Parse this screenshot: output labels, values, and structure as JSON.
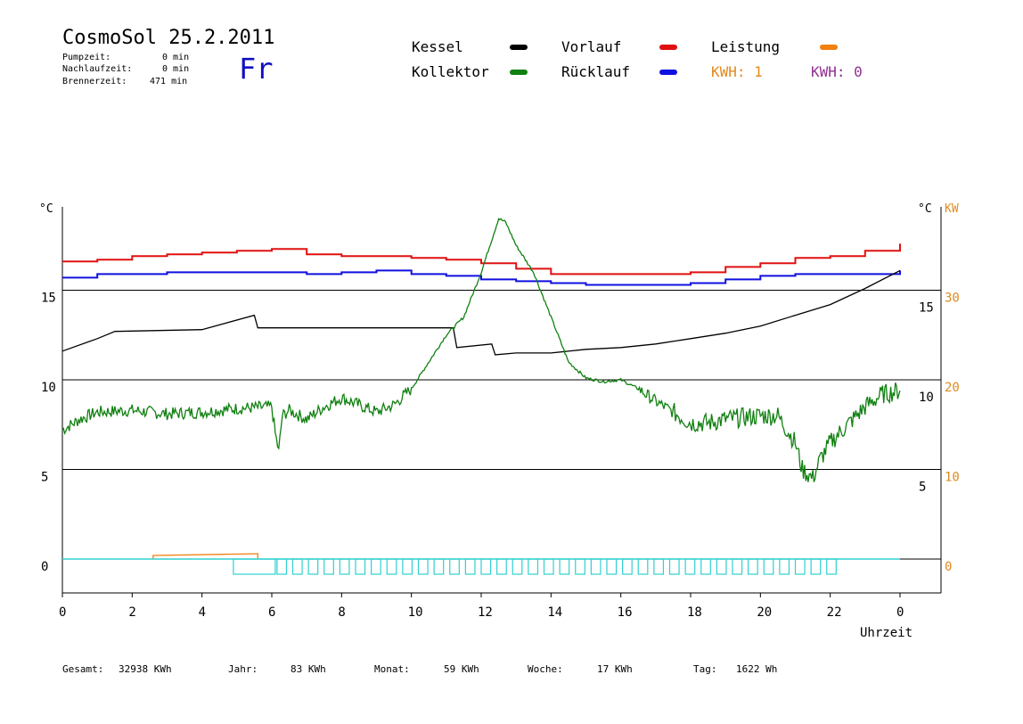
{
  "header": {
    "title": "CosmoSol 25.2.2011",
    "weekday": "Fr",
    "stats": [
      {
        "label": "Pumpzeit:",
        "value": "0 min"
      },
      {
        "label": "Nachlaufzeit:",
        "value": "0 min"
      },
      {
        "label": "Brennerzeit:",
        "value": "471 min"
      }
    ]
  },
  "legend": {
    "items": [
      {
        "label": "Kessel",
        "color": "#000000"
      },
      {
        "label": "Kollektor",
        "color": "#108010"
      },
      {
        "label": "Vorlauf",
        "color": "#e01010"
      },
      {
        "label": "Rücklauf",
        "color": "#1010e0"
      },
      {
        "label": "Leistung",
        "color": "#f08010"
      }
    ],
    "kwh_a": "KWH: 1",
    "kwh_a_color": "#e08a20",
    "kwh_b": "KWH: 0",
    "kwh_b_color": "#903090"
  },
  "footer": {
    "items": [
      {
        "label": "Gesamt:",
        "value": "32938 KWh"
      },
      {
        "label": "Jahr:",
        "value": "83 KWh"
      },
      {
        "label": "Monat:",
        "value": "59 KWh"
      },
      {
        "label": "Woche:",
        "value": "17 KWh"
      },
      {
        "label": "Tag:",
        "value": "1622 Wh"
      }
    ]
  },
  "chart_data": {
    "type": "line",
    "title": "CosmoSol 25.2.2011",
    "xlabel": "Uhrzeit",
    "ylabel_left": "°C",
    "ylabel_right": "°C",
    "ylabel_power": "KW",
    "xlim": [
      0,
      24
    ],
    "ylim": [
      -1.5,
      20
    ],
    "x_ticks": [
      "0",
      "2",
      "4",
      "6",
      "8",
      "10",
      "12",
      "14",
      "16",
      "18",
      "20",
      "22",
      "0"
    ],
    "y_ticks_left": [
      "15",
      "10",
      "5",
      "0"
    ],
    "y_ticks_right": [
      "15",
      "10",
      "5"
    ],
    "y_ticks_power": [
      "30",
      "20",
      "10",
      "0"
    ],
    "grid_y": [
      0,
      5,
      10,
      15
    ],
    "series": [
      {
        "name": "Vorlauf",
        "color": "#e01010",
        "x": [
          0,
          1,
          2,
          3,
          4,
          5,
          6,
          7,
          8,
          9,
          10,
          11,
          12,
          13,
          14,
          15,
          16,
          17,
          18,
          19,
          20,
          21,
          22,
          23,
          24
        ],
        "y": [
          16.6,
          16.7,
          16.9,
          17.0,
          17.1,
          17.2,
          17.3,
          17.0,
          16.9,
          16.9,
          16.8,
          16.7,
          16.5,
          16.2,
          15.9,
          15.9,
          15.9,
          15.9,
          16.0,
          16.3,
          16.5,
          16.8,
          16.9,
          17.2,
          17.6
        ]
      },
      {
        "name": "Rücklauf",
        "color": "#1010e0",
        "x": [
          0,
          1,
          2,
          3,
          4,
          5,
          6,
          7,
          8,
          9,
          10,
          11,
          12,
          13,
          14,
          15,
          16,
          17,
          18,
          19,
          20,
          21,
          22,
          23,
          24
        ],
        "y": [
          15.7,
          15.9,
          15.9,
          16.0,
          16.0,
          16.0,
          16.0,
          15.9,
          16.0,
          16.1,
          15.9,
          15.8,
          15.6,
          15.5,
          15.4,
          15.3,
          15.3,
          15.3,
          15.4,
          15.6,
          15.8,
          15.9,
          15.9,
          15.9,
          16.1
        ]
      },
      {
        "name": "Kessel",
        "color": "#000000",
        "x": [
          0,
          1,
          1.5,
          4,
          5.5,
          5.6,
          11.2,
          11.3,
          12.3,
          12.4,
          13,
          14,
          15,
          16,
          17,
          18,
          19,
          20,
          21,
          22,
          23,
          24
        ],
        "y": [
          11.6,
          12.3,
          12.7,
          12.8,
          13.6,
          12.9,
          12.9,
          11.8,
          12.0,
          11.4,
          11.5,
          11.5,
          11.7,
          11.8,
          12.0,
          12.3,
          12.6,
          13.0,
          13.6,
          14.2,
          15.1,
          16.1
        ]
      },
      {
        "name": "Kollektor",
        "color": "#108010",
        "x": [
          0,
          0.5,
          1,
          2,
          3,
          4,
          5,
          6,
          6.1,
          6.2,
          6.3,
          6.5,
          7,
          7.5,
          8,
          9,
          9.5,
          10,
          10.5,
          11,
          11.5,
          12,
          12.5,
          12.7,
          13,
          13.5,
          14,
          14.5,
          15,
          15.5,
          16,
          16.5,
          17,
          17.5,
          18,
          18.5,
          19,
          20,
          20.5,
          21,
          21.2,
          21.5,
          21.7,
          22,
          22.5,
          23,
          23.5,
          24
        ],
        "y": [
          7.2,
          7.8,
          8.2,
          8.3,
          8.1,
          8.2,
          8.4,
          8.5,
          7.0,
          6.0,
          8.0,
          8.3,
          7.8,
          8.5,
          9.0,
          8.2,
          8.6,
          9.5,
          11.0,
          12.5,
          13.5,
          16.0,
          19.0,
          18.8,
          17.5,
          16.0,
          13.5,
          11.0,
          10.1,
          9.9,
          10.0,
          9.5,
          8.8,
          8.2,
          7.6,
          7.6,
          7.8,
          8.0,
          8.0,
          6.5,
          5.0,
          4.5,
          5.5,
          6.5,
          7.5,
          8.5,
          9.2,
          9.4
        ]
      },
      {
        "name": "Leistung",
        "color": "#f08010",
        "x": [
          2.6,
          2.6,
          5.6,
          5.6
        ],
        "y": [
          0,
          0.2,
          0.3,
          0
        ]
      }
    ],
    "pump_signal": {
      "color": "#30d0d0",
      "start": 4.9,
      "first_end": 6.1,
      "end": 21.9,
      "period": 0.45
    }
  }
}
